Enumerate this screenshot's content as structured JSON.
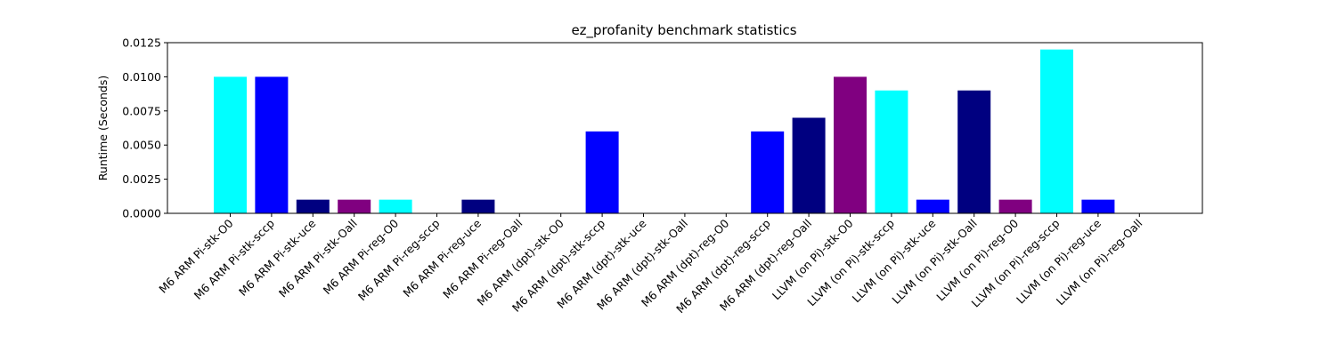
{
  "chart_data": {
    "type": "bar",
    "title": "ez_profanity benchmark statistics",
    "xlabel": "",
    "ylabel": "Runtime (Seconds)",
    "ylim": [
      0,
      0.0125
    ],
    "yticks": [
      "0.0000",
      "0.0025",
      "0.0050",
      "0.0075",
      "0.0100",
      "0.0125"
    ],
    "grid": false,
    "categories": [
      "M6 ARM Pi-stk-O0",
      "M6 ARM Pi-stk-sccp",
      "M6 ARM Pi-stk-uce",
      "M6 ARM Pi-stk-Oall",
      "M6 ARM Pi-reg-O0",
      "M6 ARM Pi-reg-sccp",
      "M6 ARM Pi-reg-uce",
      "M6 ARM Pi-reg-Oall",
      "M6 ARM (dpt)-stk-O0",
      "M6 ARM (dpt)-stk-sccp",
      "M6 ARM (dpt)-stk-uce",
      "M6 ARM (dpt)-stk-Oall",
      "M6 ARM (dpt)-reg-O0",
      "M6 ARM (dpt)-reg-sccp",
      "M6 ARM (dpt)-reg-Oall",
      "LLVM (on Pi)-stk-O0",
      "LLVM (on Pi)-stk-sccp",
      "LLVM (on Pi)-stk-uce",
      "LLVM (on Pi)-stk-Oall",
      "LLVM (on Pi)-reg-O0",
      "LLVM (on Pi)-reg-sccp",
      "LLVM (on Pi)-reg-uce",
      "LLVM (on Pi)-reg-Oall"
    ],
    "values": [
      0.01,
      0.01,
      0.001,
      0.001,
      0.001,
      0,
      0.001,
      0,
      0,
      0.006,
      0,
      0,
      0,
      0.006,
      0.007,
      0.01,
      0.009,
      0.001,
      0.009,
      0.001,
      0.012,
      0.001,
      0
    ],
    "colors": [
      "#00ffff",
      "#0000ff",
      "#000080",
      "#800080",
      "#00ffff",
      "#0000ff",
      "#000080",
      "#800080",
      "#00ffff",
      "#0000ff",
      "#000080",
      "#800080",
      "#00ffff",
      "#0000ff",
      "#000080",
      "#800080",
      "#00ffff",
      "#0000ff",
      "#000080",
      "#800080",
      "#00ffff",
      "#0000ff",
      "#000080"
    ]
  }
}
